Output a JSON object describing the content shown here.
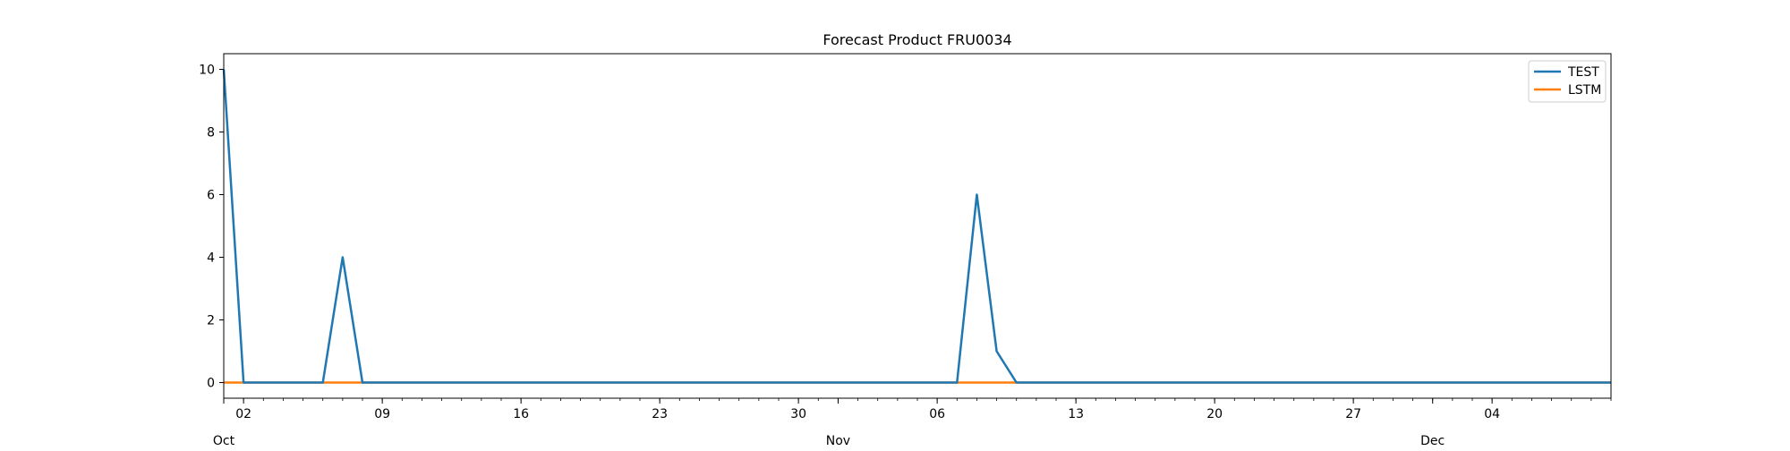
{
  "chart_data": {
    "type": "line",
    "title": "Forecast Product FRU0034",
    "xlabel": "",
    "ylabel": "",
    "x_start": "2023-10-01",
    "x_end": "2023-12-10",
    "ylim": [
      -0.5,
      10.5
    ],
    "y_ticks": [
      0,
      2,
      4,
      6,
      8,
      10
    ],
    "x_major_ticks": [
      {
        "date": "2023-10-02",
        "label": "02"
      },
      {
        "date": "2023-10-09",
        "label": "09"
      },
      {
        "date": "2023-10-16",
        "label": "16"
      },
      {
        "date": "2023-10-23",
        "label": "23"
      },
      {
        "date": "2023-10-30",
        "label": "30"
      },
      {
        "date": "2023-11-06",
        "label": "06"
      },
      {
        "date": "2023-11-13",
        "label": "13"
      },
      {
        "date": "2023-11-20",
        "label": "20"
      },
      {
        "date": "2023-11-27",
        "label": "27"
      },
      {
        "date": "2023-12-04",
        "label": "04"
      }
    ],
    "month_labels": [
      {
        "date": "2023-10-01",
        "label": "Oct"
      },
      {
        "date": "2023-11-01",
        "label": "Nov"
      },
      {
        "date": "2023-12-01",
        "label": "Dec"
      }
    ],
    "grid": false,
    "legend_position": "top-right",
    "series": [
      {
        "name": "TEST",
        "color": "#1f77b4",
        "points": [
          {
            "x": "2023-10-01",
            "y": 10
          },
          {
            "x": "2023-10-02",
            "y": 0
          },
          {
            "x": "2023-10-06",
            "y": 0
          },
          {
            "x": "2023-10-07",
            "y": 4
          },
          {
            "x": "2023-10-08",
            "y": 0
          },
          {
            "x": "2023-11-07",
            "y": 0
          },
          {
            "x": "2023-11-08",
            "y": 6
          },
          {
            "x": "2023-11-09",
            "y": 1
          },
          {
            "x": "2023-11-10",
            "y": 0
          },
          {
            "x": "2023-12-10",
            "y": 0
          }
        ]
      },
      {
        "name": "LSTM",
        "color": "#ff7f0e",
        "points": [
          {
            "x": "2023-10-01",
            "y": 0
          },
          {
            "x": "2023-12-10",
            "y": 0
          }
        ]
      }
    ]
  }
}
